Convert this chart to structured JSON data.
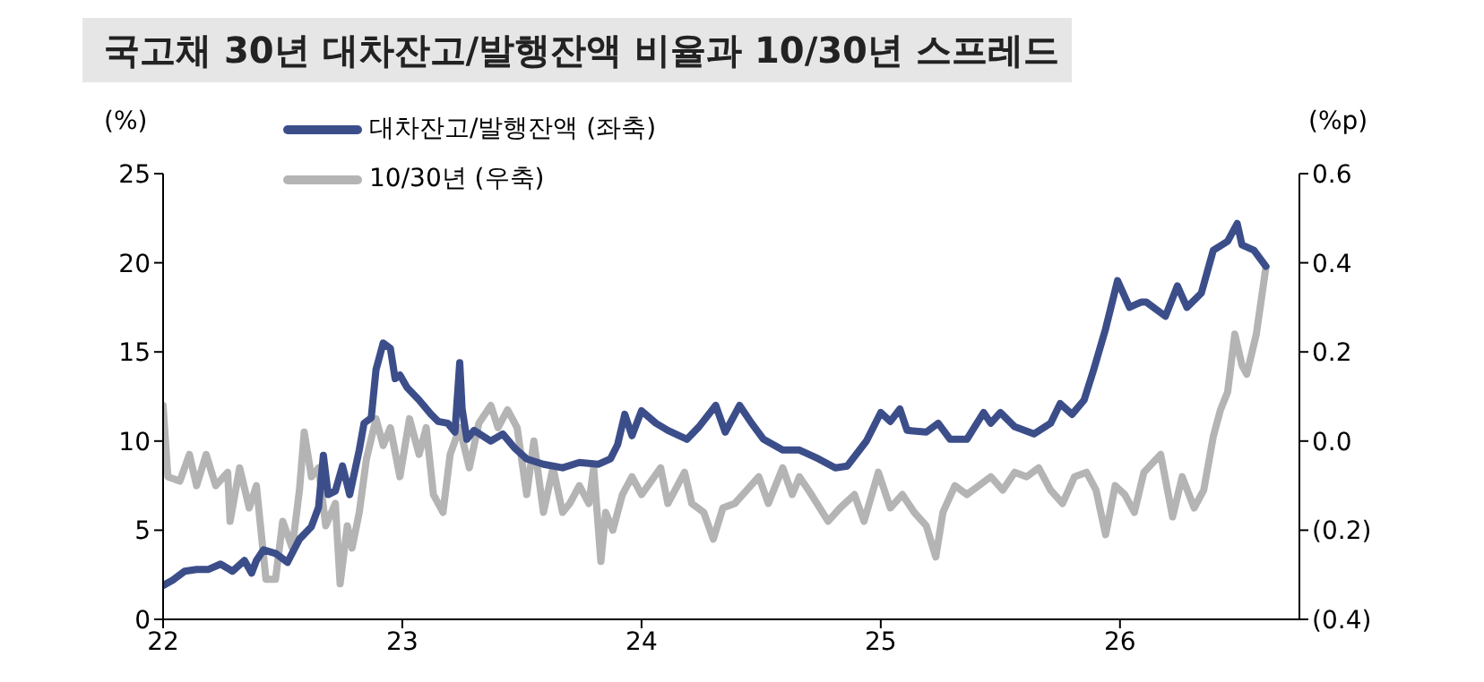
{
  "chart_data": {
    "type": "line",
    "title": "국고채 30년 대차잔고/발행잔액 비율과 10/30년 스프레드",
    "ylabel": "(%)",
    "y2label": "(%p)",
    "legend": "top",
    "marker": "none",
    "line_style": "solid",
    "xlim": [
      22,
      26.75
    ],
    "xticks": [
      22,
      23,
      24,
      25,
      26
    ],
    "ylim": [
      0,
      25
    ],
    "yticks": [
      0,
      5,
      10,
      15,
      20,
      25
    ],
    "y2lim": [
      -0.4,
      0.6
    ],
    "y2ticks": [
      {
        "value": -0.4,
        "label": "(0.4)"
      },
      {
        "value": -0.2,
        "label": "(0.2)"
      },
      {
        "value": 0,
        "label": "0.0"
      },
      {
        "value": 0.2,
        "label": "0.2"
      },
      {
        "value": 0.4,
        "label": "0.4"
      },
      {
        "value": 0.6,
        "label": "0.6"
      }
    ],
    "series": [
      {
        "name": "대차잔고/발행잔액 (좌축)",
        "color": "#3c4e8a",
        "x": [
          22.0,
          22.04,
          22.09,
          22.14,
          22.19,
          22.24,
          22.29,
          22.34,
          22.37,
          22.39,
          22.42,
          22.47,
          22.52,
          22.57,
          22.62,
          22.65,
          22.67,
          22.69,
          22.72,
          22.75,
          22.78,
          22.82,
          22.84,
          22.87,
          22.89,
          22.92,
          22.95,
          22.97,
          22.99,
          23.02,
          23.07,
          23.12,
          23.15,
          23.19,
          23.22,
          23.24,
          23.25,
          23.27,
          23.3,
          23.37,
          23.42,
          23.47,
          23.52,
          23.59,
          23.67,
          23.74,
          23.82,
          23.87,
          23.9,
          23.93,
          23.96,
          24.0,
          24.06,
          24.11,
          24.19,
          24.24,
          24.31,
          24.35,
          24.41,
          24.46,
          24.51,
          24.59,
          24.66,
          24.74,
          24.81,
          24.86,
          24.94,
          25.0,
          25.04,
          25.08,
          25.11,
          25.19,
          25.24,
          25.29,
          25.36,
          25.43,
          25.46,
          25.5,
          25.56,
          25.64,
          25.71,
          25.75,
          25.8,
          25.85,
          25.89,
          25.94,
          25.99,
          26.04,
          26.09,
          26.11,
          26.19,
          26.24,
          26.28,
          26.34,
          26.39,
          26.45,
          26.49,
          26.51,
          26.56,
          26.61
        ],
        "values": [
          1.9,
          2.2,
          2.7,
          2.8,
          2.8,
          3.1,
          2.7,
          3.3,
          2.6,
          3.3,
          3.9,
          3.7,
          3.2,
          4.5,
          5.2,
          6.3,
          9.2,
          7.0,
          7.2,
          8.6,
          7.0,
          9.5,
          11.0,
          11.3,
          14.0,
          15.5,
          15.2,
          13.5,
          13.7,
          13.0,
          12.3,
          11.5,
          11.1,
          11.0,
          10.5,
          14.4,
          11.8,
          10.1,
          10.6,
          10.0,
          10.4,
          9.6,
          9.0,
          8.7,
          8.5,
          8.8,
          8.7,
          9.0,
          9.8,
          11.5,
          10.3,
          11.7,
          11.0,
          10.6,
          10.1,
          10.8,
          12.0,
          10.5,
          12.0,
          11.0,
          10.1,
          9.5,
          9.5,
          9.0,
          8.5,
          8.6,
          10.0,
          11.6,
          11.1,
          11.8,
          10.6,
          10.5,
          11.0,
          10.1,
          10.1,
          11.6,
          11.0,
          11.6,
          10.8,
          10.4,
          11.0,
          12.1,
          11.5,
          12.3,
          14.0,
          16.3,
          19.0,
          17.5,
          17.8,
          17.8,
          17.0,
          18.7,
          17.5,
          18.3,
          20.7,
          21.2,
          22.2,
          21.0,
          20.7,
          19.8
        ]
      },
      {
        "name": "10/30년 (우축)",
        "color": "#b4b4b4",
        "axis": "y2",
        "x": [
          22.0,
          22.02,
          22.07,
          22.11,
          22.14,
          22.18,
          22.22,
          22.27,
          22.28,
          22.32,
          22.36,
          22.39,
          22.43,
          22.47,
          22.5,
          22.54,
          22.57,
          22.59,
          22.62,
          22.65,
          22.68,
          22.72,
          22.74,
          22.77,
          22.79,
          22.82,
          22.85,
          22.89,
          22.92,
          22.95,
          22.99,
          23.03,
          23.07,
          23.1,
          23.13,
          23.17,
          23.2,
          23.24,
          23.28,
          23.32,
          23.37,
          23.4,
          23.44,
          23.48,
          23.52,
          23.55,
          23.59,
          23.63,
          23.67,
          23.7,
          23.74,
          23.78,
          23.8,
          23.83,
          23.85,
          23.88,
          23.92,
          23.96,
          24.0,
          24.08,
          24.11,
          24.18,
          24.21,
          24.26,
          24.3,
          24.34,
          24.39,
          24.44,
          24.49,
          24.53,
          24.59,
          24.63,
          24.66,
          24.71,
          24.78,
          24.83,
          24.89,
          24.93,
          24.99,
          25.04,
          25.09,
          25.14,
          25.19,
          25.23,
          25.26,
          25.31,
          25.36,
          25.41,
          25.46,
          25.51,
          25.56,
          25.61,
          25.66,
          25.71,
          25.76,
          25.81,
          25.86,
          25.9,
          25.94,
          25.98,
          26.02,
          26.06,
          26.1,
          26.17,
          26.22,
          26.26,
          26.31,
          26.35,
          26.39,
          26.42,
          26.45,
          26.48,
          26.51,
          26.53,
          26.57,
          26.61
        ],
        "values": [
          0.08,
          -0.08,
          -0.09,
          -0.03,
          -0.1,
          -0.03,
          -0.1,
          -0.07,
          -0.18,
          -0.06,
          -0.15,
          -0.1,
          -0.31,
          -0.31,
          -0.18,
          -0.24,
          -0.11,
          0.02,
          -0.08,
          -0.06,
          -0.19,
          -0.14,
          -0.32,
          -0.19,
          -0.24,
          -0.16,
          -0.04,
          0.05,
          -0.01,
          0.03,
          -0.08,
          0.05,
          -0.03,
          0.03,
          -0.12,
          -0.16,
          -0.03,
          0.03,
          -0.06,
          0.04,
          0.08,
          0.03,
          0.07,
          0.03,
          -0.12,
          0.0,
          -0.16,
          -0.06,
          -0.16,
          -0.14,
          -0.1,
          -0.14,
          -0.06,
          -0.27,
          -0.16,
          -0.2,
          -0.12,
          -0.08,
          -0.12,
          -0.06,
          -0.14,
          -0.07,
          -0.14,
          -0.16,
          -0.22,
          -0.15,
          -0.14,
          -0.11,
          -0.08,
          -0.14,
          -0.06,
          -0.12,
          -0.08,
          -0.12,
          -0.18,
          -0.15,
          -0.12,
          -0.18,
          -0.07,
          -0.15,
          -0.12,
          -0.16,
          -0.19,
          -0.26,
          -0.16,
          -0.1,
          -0.12,
          -0.1,
          -0.08,
          -0.11,
          -0.07,
          -0.08,
          -0.06,
          -0.11,
          -0.14,
          -0.08,
          -0.07,
          -0.11,
          -0.21,
          -0.1,
          -0.12,
          -0.16,
          -0.07,
          -0.03,
          -0.17,
          -0.08,
          -0.15,
          -0.11,
          0.01,
          0.07,
          0.11,
          0.24,
          0.17,
          0.15,
          0.24,
          0.39
        ]
      }
    ]
  }
}
